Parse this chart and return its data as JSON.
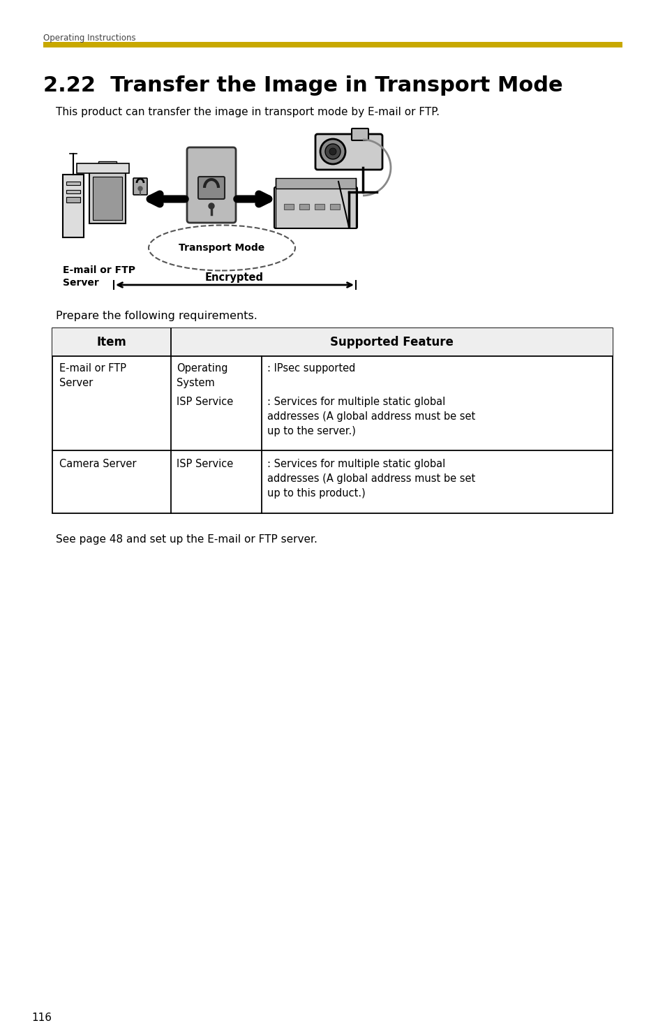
{
  "page_number": "116",
  "header_text": "Operating Instructions",
  "golden_bar_color": "#C8A800",
  "title": "2.22  Transfer the Image in Transport Mode",
  "intro_text": "This product can transfer the image in transport mode by E-mail or FTP.",
  "diagram_label_transport": "Transport Mode",
  "diagram_label_email": "E-mail or FTP\nServer",
  "diagram_label_encrypted": "Encrypted",
  "prepare_text": "Prepare the following requirements.",
  "table_col1_header": "Item",
  "table_col2_header": "Supported Feature",
  "table_rows": [
    {
      "col1": "E-mail or FTP\nServer",
      "sub_rows": [
        {
          "label": "Operating\nSystem",
          "colon": ":",
          "value": "IPsec supported"
        },
        {
          "label": "ISP Service",
          "colon": ":",
          "value": "Services for multiple static global\naddresses (A global address must be set\nup to the server.)"
        }
      ]
    },
    {
      "col1": "Camera Server",
      "sub_rows": [
        {
          "label": "ISP Service",
          "colon": ":",
          "value": "Services for multiple static global\naddresses (A global address must be set\nup to this product.)"
        }
      ]
    }
  ],
  "footer_text": "See page 48 and set up the E-mail or FTP server.",
  "background_color": "#ffffff",
  "text_color": "#000000"
}
